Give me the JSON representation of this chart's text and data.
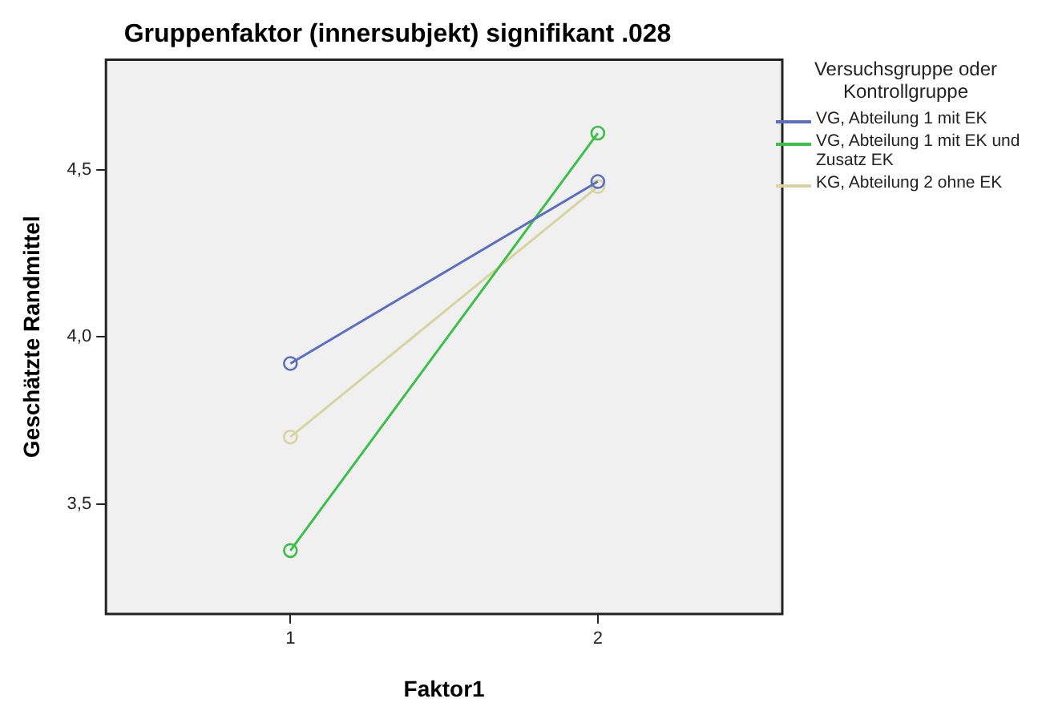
{
  "chart_data": {
    "type": "line",
    "title": "Gruppenfaktor (innersubjekt) signifikant .028",
    "xlabel": "Faktor1",
    "ylabel": "Geschätzte Randmittel",
    "legend_title": "Versuchsgruppe oder Kontrollgruppe",
    "x": [
      1,
      2
    ],
    "series": [
      {
        "name": "VG, Abteilung 1 mit EK",
        "color": "#5a6fc0",
        "values": [
          3.92,
          4.465
        ]
      },
      {
        "name": "VG, Abteilung 1 mit EK und Zusatz EK",
        "color": "#3cbf4a",
        "values": [
          3.36,
          4.61
        ]
      },
      {
        "name": "KG, Abteilung 2 ohne EK",
        "color": "#d8d4a0",
        "values": [
          3.7,
          4.45
        ]
      }
    ],
    "xlim": [
      0.4,
      2.6
    ],
    "xticks": [
      1,
      2
    ],
    "ylim": [
      3.17,
      4.83
    ],
    "yticks": [
      {
        "value": 3.5,
        "label": "3,5"
      },
      {
        "value": 4.0,
        "label": "4,0"
      },
      {
        "value": 4.5,
        "label": "4,5"
      }
    ],
    "grid": false,
    "legend": "right",
    "marker": "circle",
    "line_style": "solid"
  }
}
